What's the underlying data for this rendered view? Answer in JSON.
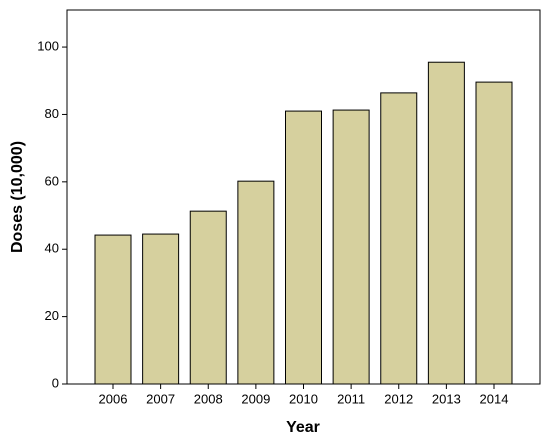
{
  "chart_data": {
    "type": "bar",
    "x_label": "Year",
    "y_label": "Doses (10,000)",
    "categories": [
      "2006",
      "2007",
      "2008",
      "2009",
      "2010",
      "2011",
      "2012",
      "2013",
      "2014"
    ],
    "values": [
      44.2,
      44.5,
      51.3,
      60.2,
      81,
      81.3,
      86.4,
      95.5,
      89.6
    ],
    "color": "#d6d09e",
    "ylim": [
      0,
      111
    ],
    "yticks": [
      0,
      20,
      40,
      60,
      80,
      100
    ],
    "grid": false
  }
}
